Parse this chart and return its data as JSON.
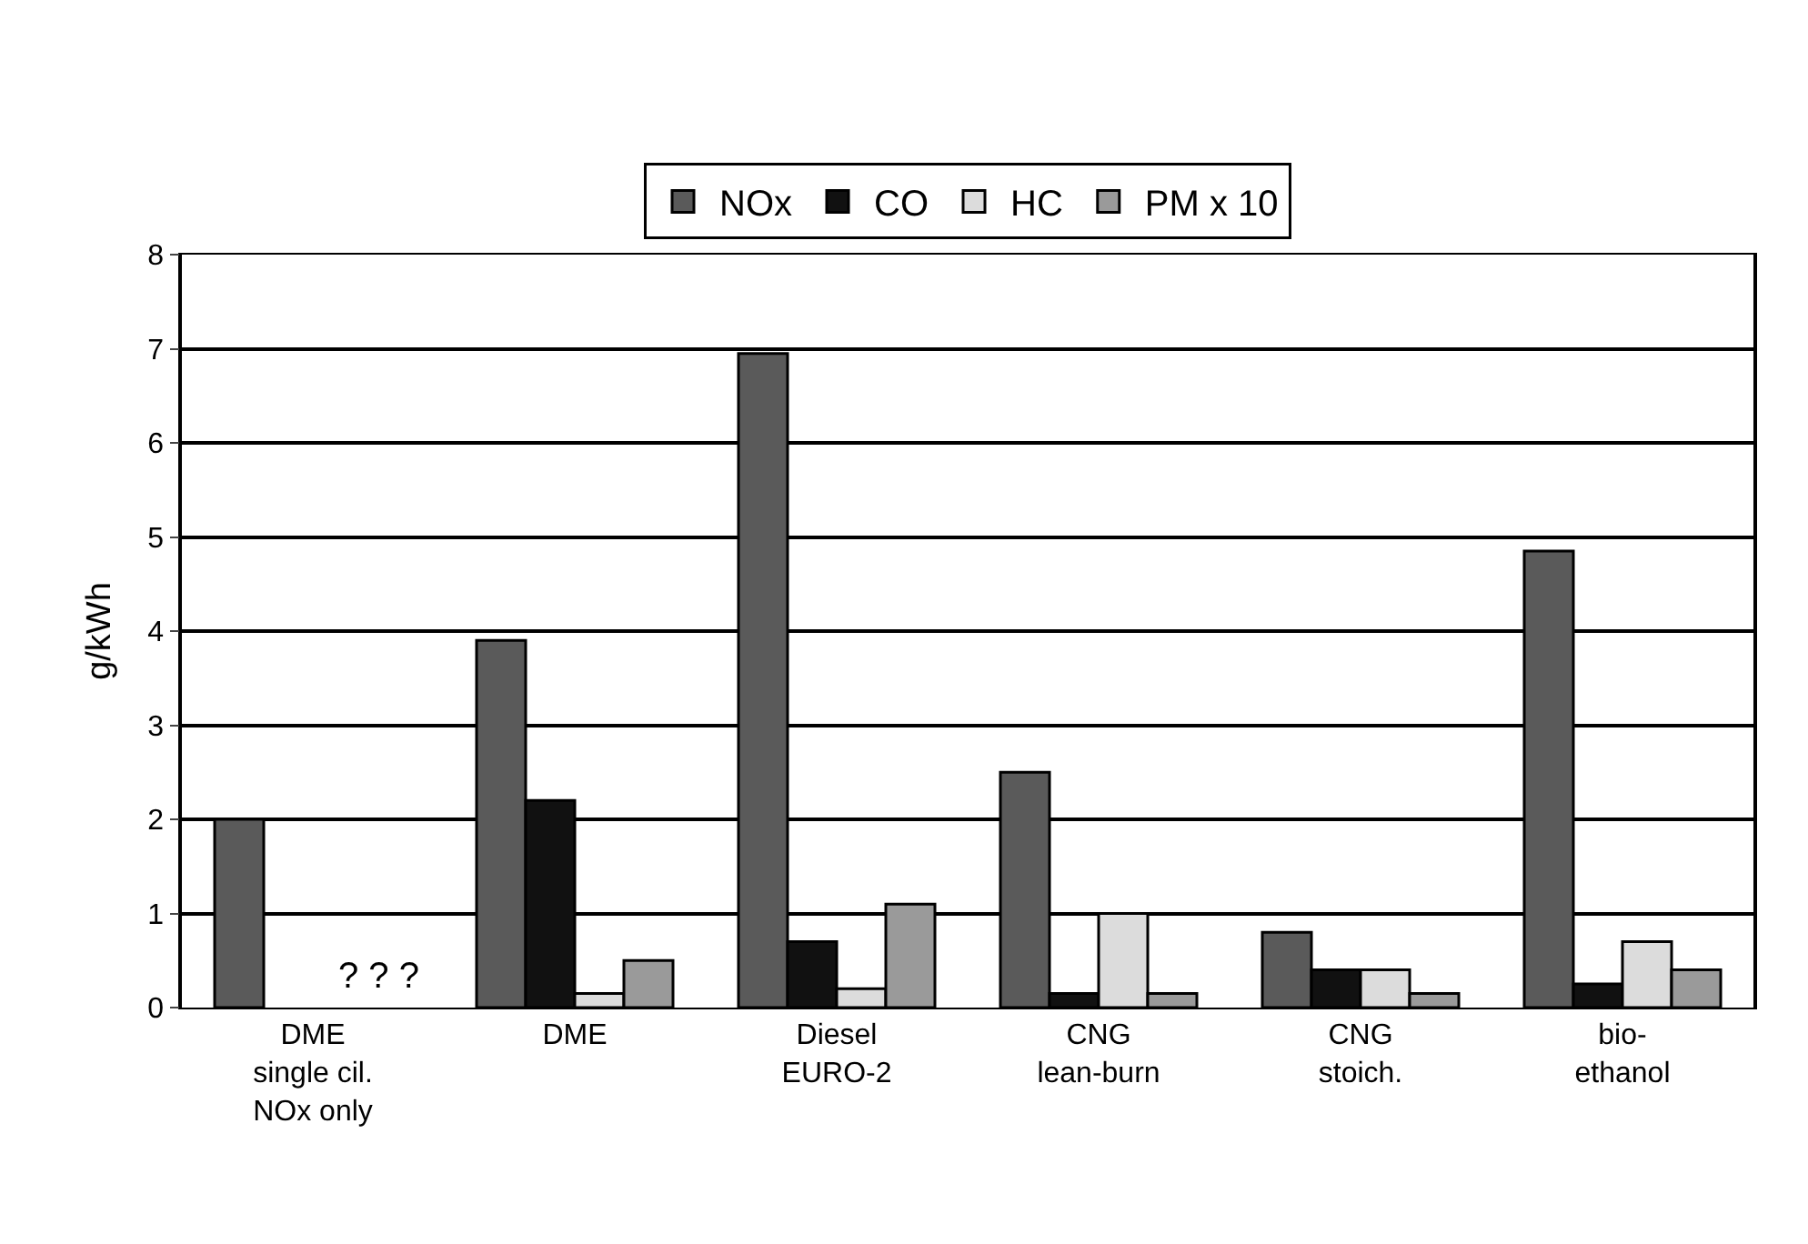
{
  "chart_data": {
    "type": "bar",
    "ylabel": "g/kWh",
    "categories": [
      "DME\nsingle cil.\nNOx only",
      "DME",
      "Diesel\nEURO-2",
      "CNG\nlean-burn",
      "CNG\nstoich.",
      "bio-\nethanol"
    ],
    "series": [
      {
        "name": "NOx",
        "color": "#5a5a5a",
        "values": [
          2.0,
          3.9,
          6.95,
          2.5,
          0.8,
          4.85
        ]
      },
      {
        "name": "CO",
        "color": "#111111",
        "values": [
          null,
          2.2,
          0.7,
          0.15,
          0.4,
          0.25
        ]
      },
      {
        "name": "HC",
        "color": "#dcdcdc",
        "values": [
          null,
          0.15,
          0.2,
          1.0,
          0.4,
          0.7
        ]
      },
      {
        "name": "PM x 10",
        "color": "#9a9a9a",
        "values": [
          null,
          0.5,
          1.1,
          0.15,
          0.15,
          0.4
        ]
      }
    ],
    "annotations": [
      "? ? ?"
    ],
    "ylim": [
      0,
      8
    ],
    "yticks": [
      0,
      1,
      2,
      3,
      4,
      5,
      6,
      7,
      8
    ],
    "grid": "y",
    "legend": "top"
  }
}
